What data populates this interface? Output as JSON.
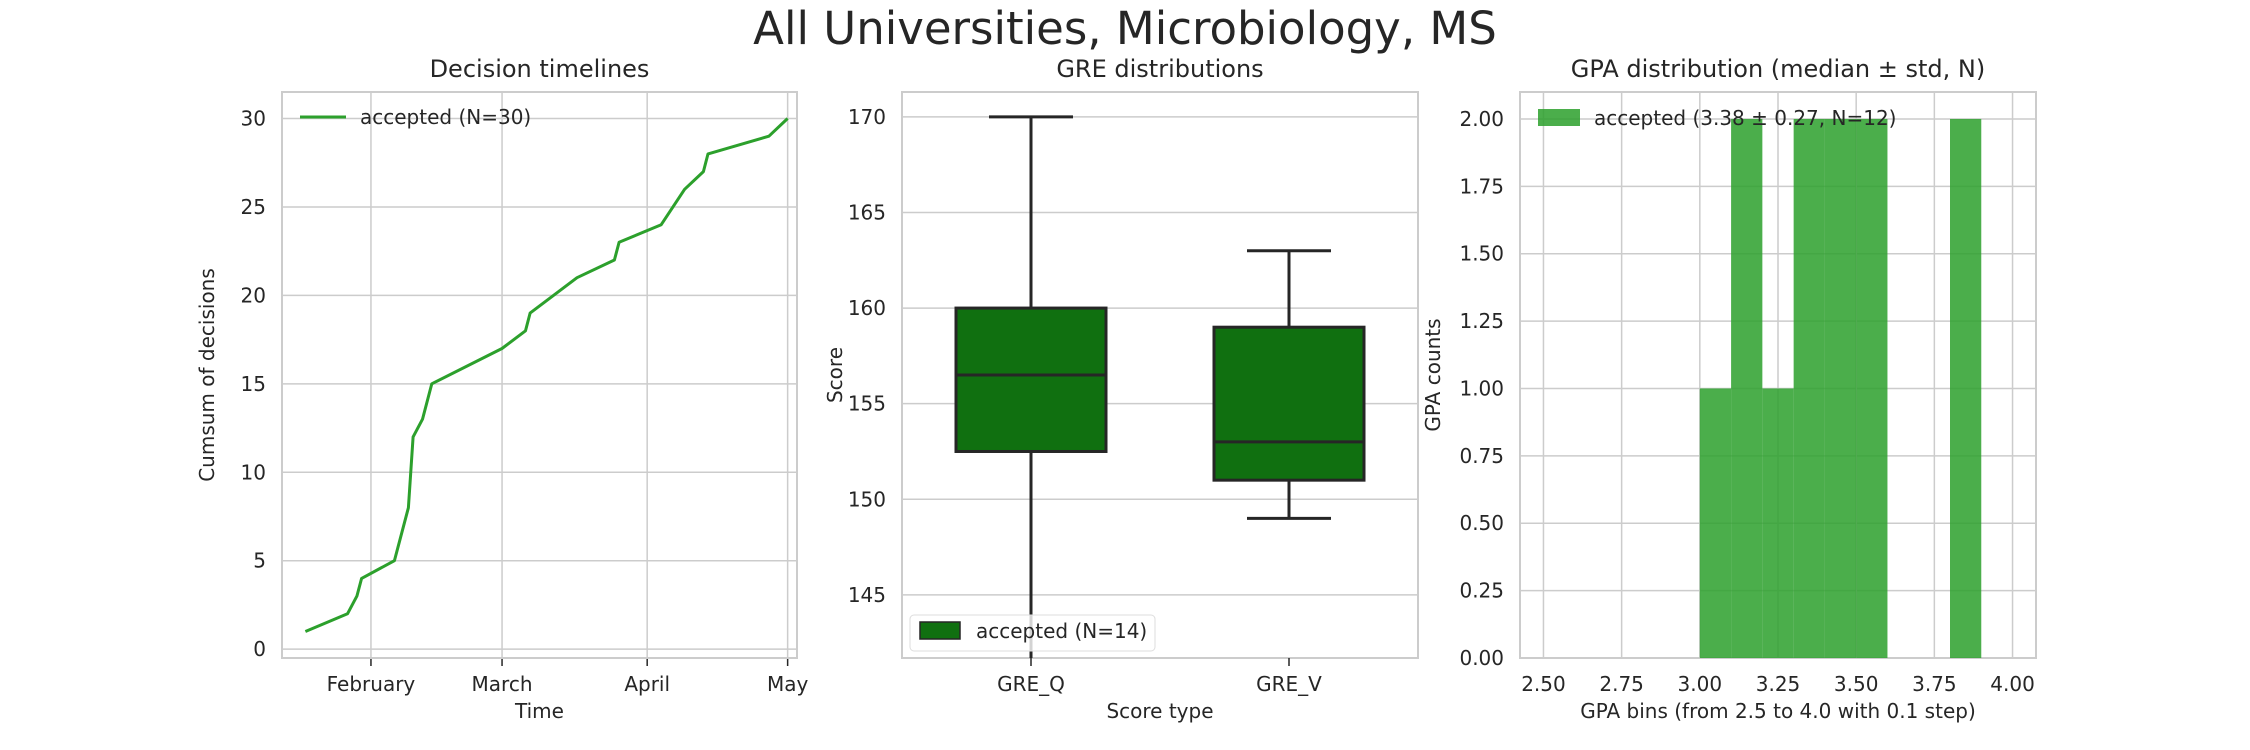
{
  "figure": {
    "title": "All Universities, Microbiology, MS"
  },
  "chart_data": [
    {
      "type": "line",
      "title": "Decision timelines",
      "xlabel": "Time",
      "ylabel": "Cumsum of decisions",
      "x_range": [
        "2019-01-13",
        "2019-05-03"
      ],
      "ylim": [
        -0.5,
        31.5
      ],
      "x_ticks": [
        {
          "date": "2019-02-01",
          "label": "February"
        },
        {
          "date": "2019-03-01",
          "label": "March"
        },
        {
          "date": "2019-04-01",
          "label": "April"
        },
        {
          "date": "2019-05-01",
          "label": "May"
        }
      ],
      "y_ticks": [
        0,
        5,
        10,
        15,
        20,
        25,
        30
      ],
      "grid": true,
      "legend_position": "upper-left",
      "series": [
        {
          "name": "accepted (N=30)",
          "color": "#2ca02c",
          "points": [
            {
              "x": "2019-01-18",
              "y": 1
            },
            {
              "x": "2019-01-27",
              "y": 2
            },
            {
              "x": "2019-01-29",
              "y": 3
            },
            {
              "x": "2019-01-30",
              "y": 4
            },
            {
              "x": "2019-02-06",
              "y": 5
            },
            {
              "x": "2019-02-09",
              "y": 8
            },
            {
              "x": "2019-02-10",
              "y": 12
            },
            {
              "x": "2019-02-12",
              "y": 13
            },
            {
              "x": "2019-02-14",
              "y": 15
            },
            {
              "x": "2019-03-01",
              "y": 17
            },
            {
              "x": "2019-03-06",
              "y": 18
            },
            {
              "x": "2019-03-07",
              "y": 19
            },
            {
              "x": "2019-03-17",
              "y": 21
            },
            {
              "x": "2019-03-25",
              "y": 22
            },
            {
              "x": "2019-03-26",
              "y": 23
            },
            {
              "x": "2019-04-04",
              "y": 24
            },
            {
              "x": "2019-04-09",
              "y": 26
            },
            {
              "x": "2019-04-13",
              "y": 27
            },
            {
              "x": "2019-04-14",
              "y": 28
            },
            {
              "x": "2019-04-27",
              "y": 29
            },
            {
              "x": "2019-05-01",
              "y": 30
            }
          ]
        }
      ]
    },
    {
      "type": "box",
      "title": "GRE distributions",
      "xlabel": "Score type",
      "ylabel": "Score",
      "categories": [
        "GRE_Q",
        "GRE_V"
      ],
      "ylim": [
        141.7,
        171.3
      ],
      "y_ticks": [
        145,
        150,
        155,
        160,
        165,
        170
      ],
      "grid": true,
      "legend_position": "lower-left",
      "series": [
        {
          "name": "accepted (N=14)",
          "color": "#107010",
          "boxes": [
            {
              "category": "GRE_Q",
              "whisker_low": 141.7,
              "q1": 152.5,
              "median": 156.5,
              "q3": 160,
              "whisker_high": 170
            },
            {
              "category": "GRE_V",
              "whisker_low": 149,
              "q1": 151,
              "median": 153,
              "q3": 159,
              "whisker_high": 163
            }
          ]
        }
      ]
    },
    {
      "type": "bar",
      "subtype": "histogram",
      "title": "GPA distribution (median ± std, N)",
      "xlabel": "GPA bins (from 2.5 to 4.0 with 0.1 step)",
      "ylabel": "GPA counts",
      "xlim": [
        2.425,
        4.075
      ],
      "ylim": [
        0,
        2.1
      ],
      "x_ticks": [
        2.5,
        2.75,
        3.0,
        3.25,
        3.5,
        3.75,
        4.0
      ],
      "x_tick_labels": [
        "2.50",
        "2.75",
        "3.00",
        "3.25",
        "3.50",
        "3.75",
        "4.00"
      ],
      "y_ticks": [
        0,
        0.25,
        0.5,
        0.75,
        1.0,
        1.25,
        1.5,
        1.75,
        2.0
      ],
      "y_tick_labels": [
        "0.00",
        "0.25",
        "0.50",
        "0.75",
        "1.00",
        "1.25",
        "1.50",
        "1.75",
        "2.00"
      ],
      "grid": true,
      "legend_position": "upper-left",
      "series": [
        {
          "name": "accepted (3.38 ± 0.27, N=12)",
          "color": "#2ca02c",
          "opacity": 0.85,
          "bins": [
            {
              "from": 3.0,
              "to": 3.1,
              "count": 1
            },
            {
              "from": 3.1,
              "to": 3.2,
              "count": 2
            },
            {
              "from": 3.2,
              "to": 3.3,
              "count": 1
            },
            {
              "from": 3.3,
              "to": 3.4,
              "count": 2
            },
            {
              "from": 3.4,
              "to": 3.5,
              "count": 2
            },
            {
              "from": 3.5,
              "to": 3.6,
              "count": 2
            },
            {
              "from": 3.8,
              "to": 3.9,
              "count": 2
            }
          ]
        }
      ]
    }
  ]
}
